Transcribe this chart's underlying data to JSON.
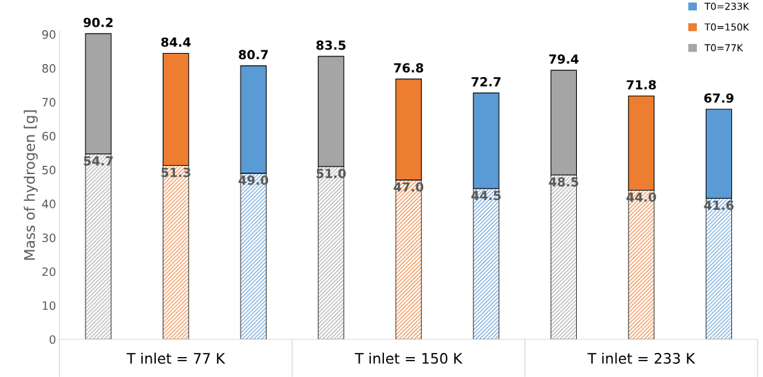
{
  "chart_data": {
    "type": "bar",
    "stacked": true,
    "ylabel": "Mass of hydrogen [g]",
    "categories": [
      null,
      "T inlet = 77 K",
      null,
      null,
      "T inlet = 150 K",
      null,
      null,
      "T inlet = 233 K",
      null
    ],
    "series": [
      {
        "color": "#a5a5a5",
        "values": [
          54.7,
          null,
          null,
          51.0,
          null,
          null,
          48.5,
          null,
          null
        ],
        "value_labels": [
          "54.7",
          null,
          null,
          "51.0",
          null,
          null,
          "48.5",
          null,
          null
        ]
      },
      {
        "color": "#ed7d31",
        "values": [
          null,
          51.3,
          null,
          null,
          47.0,
          null,
          null,
          44.0,
          null
        ],
        "value_labels": [
          null,
          "51.3",
          null,
          null,
          "47.0",
          null,
          null,
          "44.0",
          null
        ]
      },
      {
        "color": "#5b9bd5",
        "values": [
          null,
          null,
          49.0,
          null,
          null,
          44.5,
          null,
          null,
          41.6
        ],
        "value_labels": [
          null,
          null,
          "49.0",
          null,
          null,
          "44.5",
          null,
          null,
          "41.6"
        ]
      },
      {
        "name": "T0=77K",
        "color": "#a5a5a5",
        "values": [
          35.5,
          null,
          null,
          32.5,
          null,
          null,
          30.9,
          null,
          null
        ]
      },
      {
        "name": "T0=150K",
        "color": "#ed7d31",
        "values": [
          null,
          33.1,
          null,
          null,
          29.8,
          null,
          null,
          27.8,
          null
        ]
      },
      {
        "name": "T0=233K",
        "color": "#5b9bd5",
        "values": [
          null,
          null,
          31.7,
          null,
          null,
          28.2,
          null,
          null,
          26.3
        ]
      }
    ],
    "totals": [
      "90.2",
      "84.4",
      "80.7",
      "83.5",
      "76.8",
      "72.7",
      "79.4",
      "71.8",
      "67.9"
    ],
    "ylim": [
      0,
      91
    ],
    "yticks": [
      0,
      10,
      20,
      30,
      40,
      50,
      60,
      70,
      80,
      90
    ],
    "grid": false,
    "legend": "top right"
  }
}
